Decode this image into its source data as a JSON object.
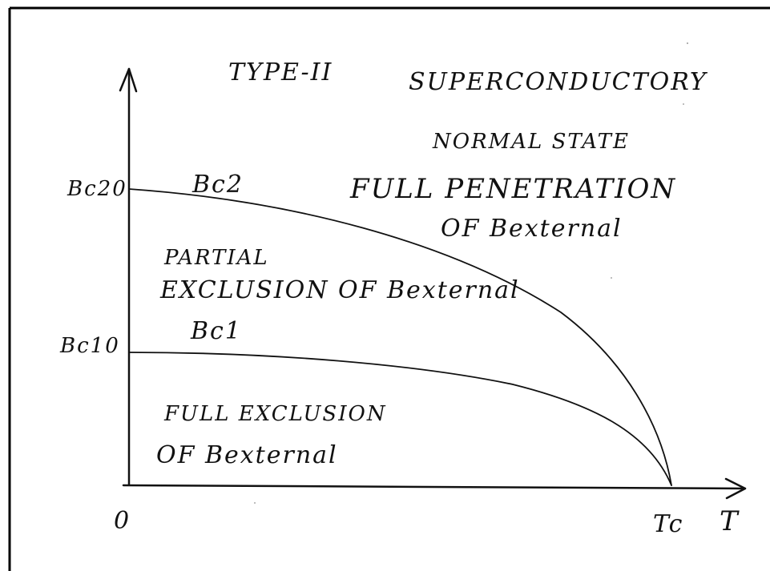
{
  "labels": {
    "title_left": "TYPE-II",
    "title_right": "SUPERCONDUCTORY",
    "normal_state": "NORMAL STATE",
    "full_penetration": "FULL PENETRATION",
    "of_b_external_top": "OF Bexternal",
    "bc2_curve": "Bc2",
    "bc20_axis": "Bc20",
    "partial_line1": "PARTIAL",
    "partial_line2": "EXCLUSION OF Bexternal",
    "bc1_curve": "Bc1",
    "bc10_axis": "Bc10",
    "full_exclusion_line1": "FULL EXCLUSION",
    "full_exclusion_line2": "OF Bexternal",
    "origin": "0",
    "tc": "Tc",
    "t_axis": "T"
  },
  "colors": {
    "ink": "#111111",
    "background": "#ffffff",
    "frame": "#000000"
  }
}
